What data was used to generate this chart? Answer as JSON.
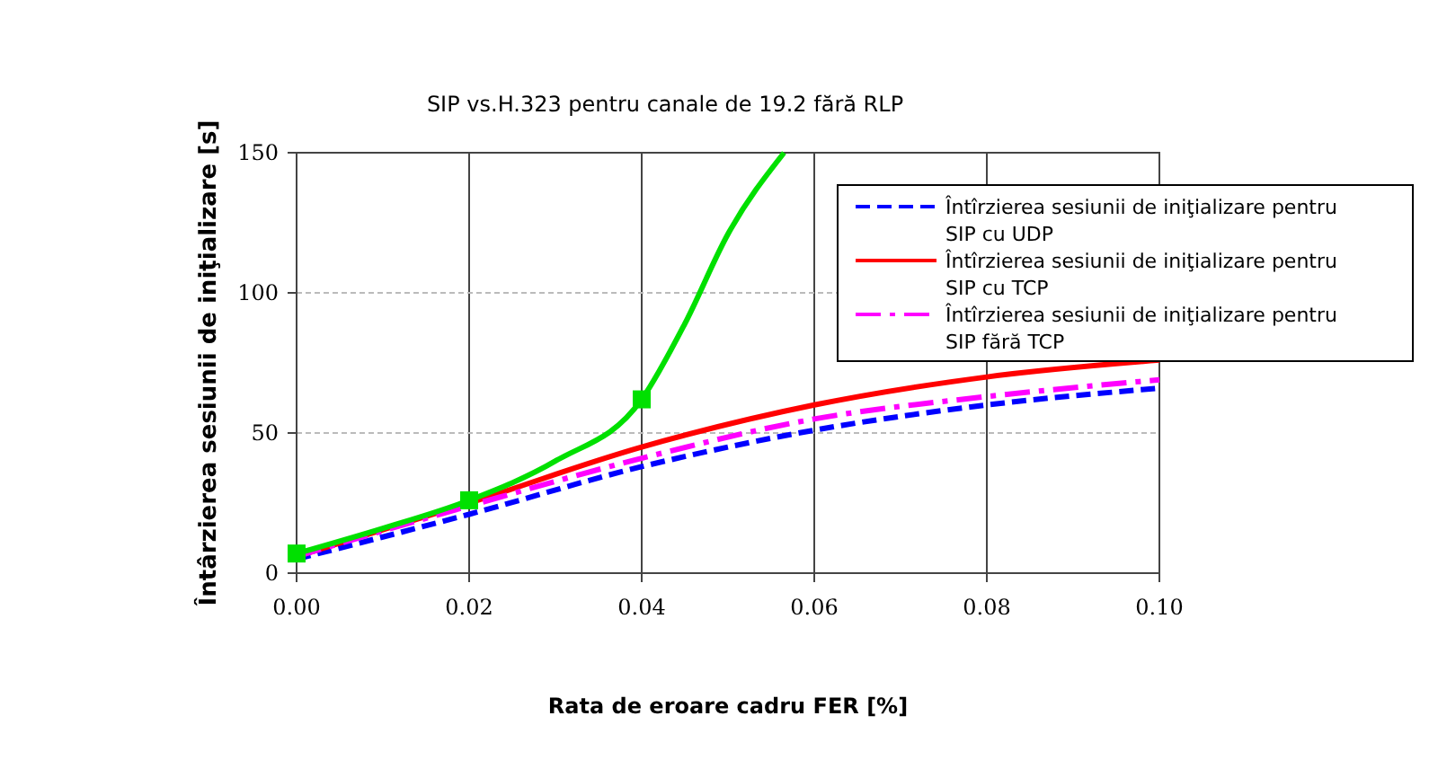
{
  "chart_data": {
    "type": "line",
    "title": "SIP vs.H.323 pentru canale de 19.2 fără RLP",
    "xlabel": "Rata de eroare cadru FER [%]",
    "ylabel": "Întârzierea sesiunii de iniţializare [s]",
    "xlim": [
      0,
      0.1
    ],
    "xticks": [
      {
        "value": 0,
        "label": "0.00"
      },
      {
        "value": 0.02,
        "label": "0.02"
      },
      {
        "value": 0.04,
        "label": "0.04"
      },
      {
        "value": 0.06,
        "label": "0.06"
      },
      {
        "value": 0.08,
        "label": "0.08"
      },
      {
        "value": 0.1,
        "label": "0.10"
      }
    ],
    "ylim": [
      0,
      150
    ],
    "yticks": [
      0,
      50,
      100,
      150
    ],
    "grid": true,
    "legend": "top right",
    "marker": "none",
    "series": [
      {
        "name": "Întîrzierea sesiunii de iniţializare pentru SIP cu UDP",
        "color": "#0000ff",
        "line_style": "dashed",
        "x": [
          0,
          0.02,
          0.04,
          0.06,
          0.08,
          0.1
        ],
        "values": [
          5,
          21,
          38,
          51,
          60,
          66
        ]
      },
      {
        "name": "Întîrzierea sesiunii de iniţializare pentru SIP cu TCP",
        "color": "#ff0000",
        "line_style": "solid",
        "x": [
          0,
          0.02,
          0.04,
          0.06,
          0.08,
          0.1
        ],
        "values": [
          6,
          25,
          45,
          60,
          70,
          76
        ]
      },
      {
        "name": "Întîrzierea sesiunii de iniţializare pentru SIP fără TCP",
        "color": "#ff00ff",
        "line_style": "dashdot",
        "x": [
          0,
          0.02,
          0.04,
          0.06,
          0.08,
          0.1
        ],
        "values": [
          6,
          24,
          41,
          55,
          63,
          69
        ]
      },
      {
        "color": "#00e000",
        "line_style": "solid",
        "x": [
          0,
          0.01,
          0.02,
          0.03,
          0.04,
          0.045,
          0.05,
          0.0565
        ],
        "values": [
          7,
          16,
          26,
          40,
          62,
          89,
          121,
          150
        ]
      },
      {
        "type": "scatter",
        "color": "#00e000",
        "marker": "square",
        "x": [
          0,
          0.02,
          0.04
        ],
        "values": [
          7,
          26,
          62
        ]
      }
    ]
  }
}
